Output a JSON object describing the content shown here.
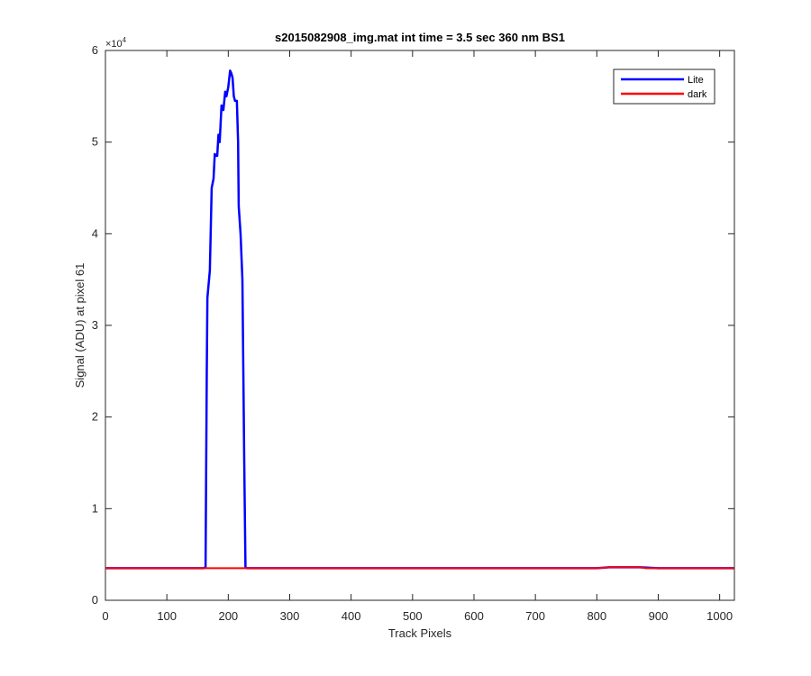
{
  "chart_data": {
    "type": "line",
    "title": "s2015082908_img.mat int time = 3.5 sec  360 nm BS1",
    "x_label": "Track Pixels",
    "y_label": "Signal (ADU) at pixel 61",
    "y_exponent": {
      "base": "×10",
      "power": "4"
    },
    "xlim": [
      0,
      1024
    ],
    "xticks": [
      0,
      100,
      200,
      300,
      400,
      500,
      600,
      700,
      800,
      900,
      1000
    ],
    "ylim": [
      0,
      6
    ],
    "yticks": [
      0,
      1,
      2,
      3,
      4,
      5,
      6
    ],
    "legend": "upper right",
    "grid": false,
    "series": [
      {
        "name": "Lite",
        "color": "#0000ff",
        "x": [
          0,
          100,
          160,
          163,
          165,
          166,
          170,
          173,
          176,
          178,
          180,
          182,
          184,
          186,
          189,
          192,
          195,
          197,
          200,
          203,
          205,
          207,
          209,
          211,
          214,
          216,
          217,
          220,
          223,
          226,
          228,
          230,
          400,
          600,
          800,
          820,
          870,
          900,
          1023
        ],
        "values": [
          0.35,
          0.35,
          0.35,
          0.36,
          2.5,
          3.3,
          3.6,
          4.5,
          4.6,
          4.87,
          4.85,
          4.85,
          5.08,
          5.0,
          5.4,
          5.35,
          5.55,
          5.5,
          5.6,
          5.78,
          5.75,
          5.7,
          5.5,
          5.45,
          5.45,
          5.0,
          4.3,
          4.0,
          3.5,
          1.5,
          0.36,
          0.35,
          0.35,
          0.35,
          0.35,
          0.36,
          0.36,
          0.35,
          0.35
        ]
      },
      {
        "name": "dark",
        "color": "#ff0000",
        "x": [
          0,
          200,
          400,
          600,
          800,
          820,
          870,
          880,
          1023
        ],
        "values": [
          0.35,
          0.35,
          0.35,
          0.35,
          0.35,
          0.36,
          0.36,
          0.35,
          0.35
        ]
      }
    ]
  }
}
